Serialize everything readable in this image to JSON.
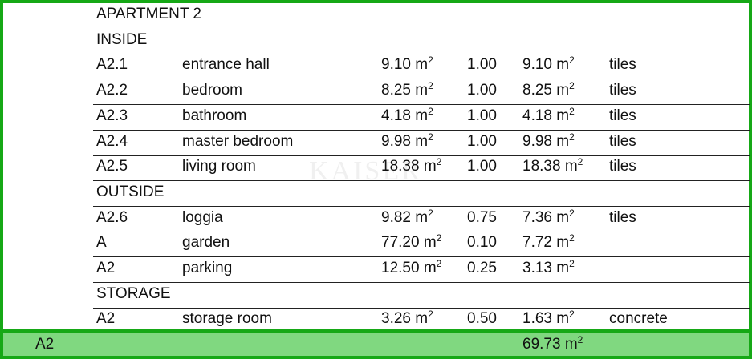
{
  "title": "APARTMENT 2",
  "watermark": "KAISER",
  "unit": "m²",
  "sections": [
    {
      "label": "INSIDE",
      "rows": [
        {
          "code": "A2.1",
          "room": "entrance hall",
          "area": "9.10",
          "coef": "1.00",
          "net": "9.10",
          "floor": "tiles"
        },
        {
          "code": "A2.2",
          "room": "bedroom",
          "area": "8.25",
          "coef": "1.00",
          "net": "8.25",
          "floor": "tiles"
        },
        {
          "code": "A2.3",
          "room": "bathroom",
          "area": "4.18",
          "coef": "1.00",
          "net": "4.18",
          "floor": "tiles"
        },
        {
          "code": "A2.4",
          "room": "master bedroom",
          "area": "9.98",
          "coef": "1.00",
          "net": "9.98",
          "floor": "tiles"
        },
        {
          "code": "A2.5",
          "room": "living room",
          "area": "18.38",
          "coef": "1.00",
          "net": "18.38",
          "floor": "tiles"
        }
      ]
    },
    {
      "label": "OUTSIDE",
      "rows": [
        {
          "code": "A2.6",
          "room": "loggia",
          "area": "9.82",
          "coef": "0.75",
          "net": "7.36",
          "floor": "tiles"
        },
        {
          "code": "A",
          "room": "garden",
          "area": "77.20",
          "coef": "0.10",
          "net": "7.72",
          "floor": ""
        },
        {
          "code": "A2",
          "room": "parking",
          "area": "12.50",
          "coef": "0.25",
          "net": "3.13",
          "floor": ""
        }
      ]
    },
    {
      "label": "STORAGE",
      "rows": [
        {
          "code": "A2",
          "room": "storage room",
          "area": "3.26",
          "coef": "0.50",
          "net": "1.63",
          "floor": "concrete"
        }
      ]
    }
  ],
  "total": {
    "code": "A2",
    "net": "69.73"
  },
  "colors": {
    "border": "#16a816",
    "total_fill": "#80d880"
  }
}
